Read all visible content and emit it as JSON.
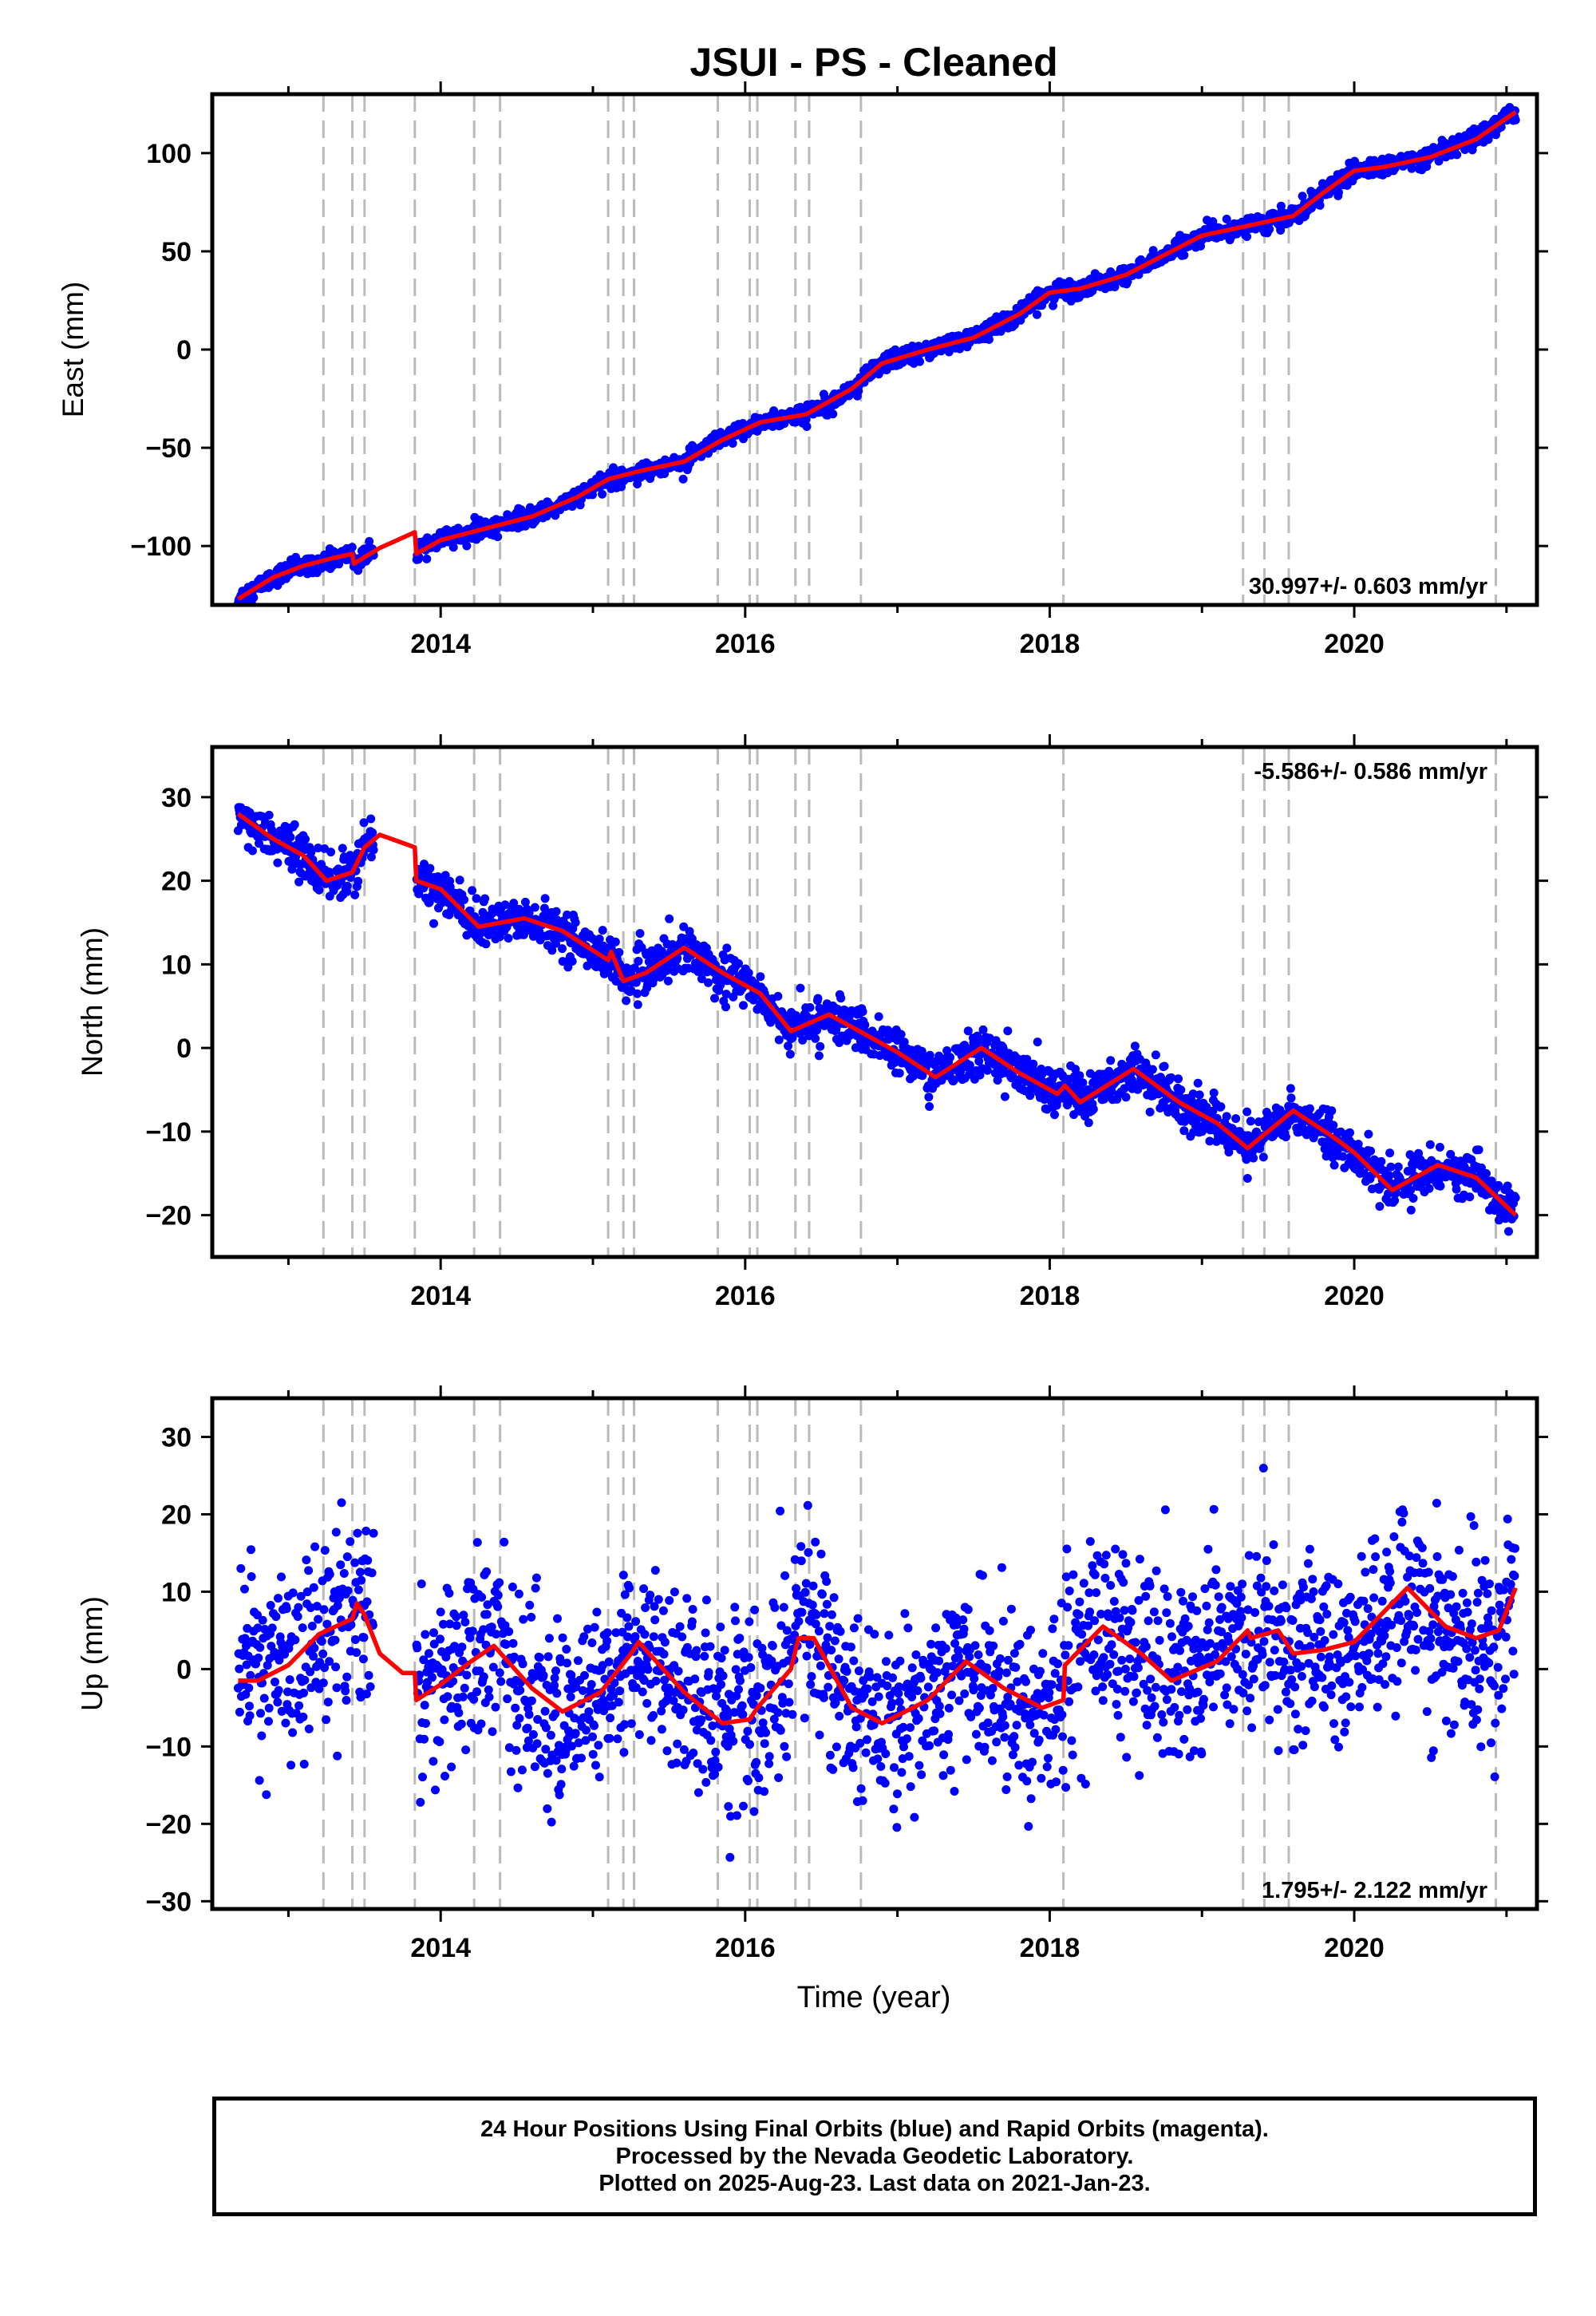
{
  "title": "JSUI  - PS - Cleaned",
  "xlabel": "Time (year)",
  "footer": {
    "line1": "24 Hour Positions Using Final Orbits (blue) and Rapid Orbits (magenta).",
    "line2": "Processed by the Nevada Geodetic Laboratory.",
    "line3": "Plotted on 2025-Aug-23. Last data on 2021-Jan-23."
  },
  "colors": {
    "points": "#0000ff",
    "model": "#ff0000",
    "event_lines": "#bbbbbb",
    "axes": "#000000"
  },
  "chart_data": [
    {
      "type": "scatter",
      "panel": "east",
      "ylabel": "East (mm)",
      "rate_label": "30.997+/- 0.603 mm/yr",
      "rate_position": "bottom-right",
      "xlim": [
        2012.5,
        2021.2
      ],
      "ylim": [
        -130,
        130
      ],
      "xticks": [
        2014,
        2016,
        2018,
        2020
      ],
      "yticks": [
        -100,
        -50,
        0,
        50,
        100
      ],
      "event_lines": [
        2013.23,
        2013.42,
        2013.5,
        2013.83,
        2014.22,
        2014.39,
        2015.1,
        2015.2,
        2015.27,
        2015.82,
        2016.03,
        2016.08,
        2016.33,
        2016.42,
        2016.76,
        2018.09,
        2019.27,
        2019.41,
        2019.57,
        2020.93
      ],
      "model": {
        "x": [
          2012.67,
          2012.9,
          2013.1,
          2013.3,
          2013.42,
          2013.43,
          2013.6,
          2013.83,
          2013.84,
          2014.0,
          2014.3,
          2014.6,
          2014.9,
          2015.1,
          2015.3,
          2015.6,
          2015.85,
          2016.1,
          2016.4,
          2016.7,
          2016.9,
          2017.2,
          2017.5,
          2017.8,
          2018.0,
          2018.2,
          2018.5,
          2018.8,
          2019.0,
          2019.3,
          2019.6,
          2019.8,
          2020.0,
          2020.2,
          2020.5,
          2020.8,
          2021.06
        ],
        "y": [
          -127,
          -116,
          -110,
          -106,
          -104,
          -109,
          -101,
          -93,
          -104,
          -97,
          -91,
          -85,
          -75,
          -66,
          -62,
          -57,
          -46,
          -37,
          -33,
          -20,
          -7,
          0,
          6,
          18,
          29,
          31,
          38,
          50,
          58,
          63,
          68,
          80,
          91,
          93,
          98,
          107,
          121
        ]
      },
      "points_by_segment": true,
      "scatter_std": 2.2
    },
    {
      "type": "scatter",
      "panel": "north",
      "ylabel": "North (mm)",
      "rate_label": "-5.586+/- 0.586 mm/yr",
      "rate_position": "top-right",
      "xlim": [
        2012.5,
        2021.2
      ],
      "ylim": [
        -25,
        36
      ],
      "xticks": [
        2014,
        2016,
        2018,
        2020
      ],
      "yticks": [
        -20,
        -10,
        0,
        10,
        20,
        30
      ],
      "event_lines": [
        2013.23,
        2013.42,
        2013.5,
        2013.83,
        2014.22,
        2014.39,
        2015.1,
        2015.2,
        2015.27,
        2015.82,
        2016.03,
        2016.08,
        2016.33,
        2016.42,
        2016.76,
        2018.09,
        2019.27,
        2019.41,
        2019.57,
        2020.93
      ],
      "model": {
        "x": [
          2012.67,
          2012.9,
          2013.1,
          2013.25,
          2013.42,
          2013.5,
          2013.6,
          2013.83,
          2013.84,
          2014.0,
          2014.25,
          2014.55,
          2014.8,
          2015.1,
          2015.12,
          2015.2,
          2015.35,
          2015.6,
          2015.85,
          2016.1,
          2016.3,
          2016.55,
          2016.8,
          2017.0,
          2017.25,
          2017.55,
          2017.8,
          2018.05,
          2018.1,
          2018.2,
          2018.55,
          2018.85,
          2019.1,
          2019.3,
          2019.6,
          2019.85,
          2020.0,
          2020.25,
          2020.55,
          2020.8,
          2021.06
        ],
        "y": [
          28,
          25,
          23,
          20,
          21,
          24,
          25.5,
          24,
          20,
          19,
          14.5,
          15.5,
          14,
          10.5,
          11.5,
          8,
          9,
          12,
          9,
          6.5,
          2,
          4,
          1.5,
          -0.5,
          -3.5,
          0,
          -3,
          -5.5,
          -4.5,
          -6.5,
          -2.5,
          -6.5,
          -9,
          -12,
          -7.5,
          -10.5,
          -12.5,
          -17,
          -14,
          -15.5,
          -20
        ]
      },
      "scatter_std": 1.3
    },
    {
      "type": "scatter",
      "panel": "up",
      "ylabel": "Up (mm)",
      "rate_label": "1.795+/- 2.122 mm/yr",
      "rate_position": "bottom-right",
      "xlim": [
        2012.5,
        2021.2
      ],
      "ylim": [
        -31,
        35
      ],
      "xticks": [
        2014,
        2016,
        2018,
        2020
      ],
      "yticks": [
        -30,
        -20,
        -10,
        0,
        10,
        20,
        30
      ],
      "event_lines": [
        2013.23,
        2013.42,
        2013.5,
        2013.83,
        2014.22,
        2014.39,
        2015.1,
        2015.2,
        2015.27,
        2015.82,
        2016.03,
        2016.08,
        2016.33,
        2016.42,
        2016.76,
        2018.09,
        2019.27,
        2019.41,
        2019.57,
        2020.93
      ],
      "model": {
        "x": [
          2012.67,
          2012.8,
          2013.0,
          2013.2,
          2013.42,
          2013.45,
          2013.5,
          2013.6,
          2013.75,
          2013.83,
          2013.84,
          2014.0,
          2014.2,
          2014.35,
          2014.6,
          2014.8,
          2015.05,
          2015.25,
          2015.3,
          2015.6,
          2015.85,
          2016.03,
          2016.08,
          2016.3,
          2016.35,
          2016.45,
          2016.7,
          2016.9,
          2017.2,
          2017.45,
          2017.7,
          2017.95,
          2018.09,
          2018.1,
          2018.35,
          2018.6,
          2018.8,
          2019.1,
          2019.3,
          2019.32,
          2019.5,
          2019.6,
          2019.8,
          2020.0,
          2020.35,
          2020.6,
          2020.8,
          2020.95,
          2021.06
        ],
        "y": [
          -1.5,
          -1.5,
          0.5,
          4.5,
          6.5,
          8.5,
          7,
          2,
          -0.5,
          -0.5,
          -4,
          -2,
          1,
          3,
          -2.5,
          -5.5,
          -3,
          2,
          3.5,
          -3,
          -7,
          -6.5,
          -5,
          0,
          4,
          4,
          -5,
          -7,
          -4,
          1,
          -2.5,
          -5,
          -4,
          0.5,
          5.5,
          2,
          -1.5,
          1,
          5,
          4,
          5,
          2,
          2.5,
          3.5,
          10.5,
          5.5,
          4,
          5,
          10.5
        ]
      },
      "scatter_std": 6.0
    }
  ]
}
